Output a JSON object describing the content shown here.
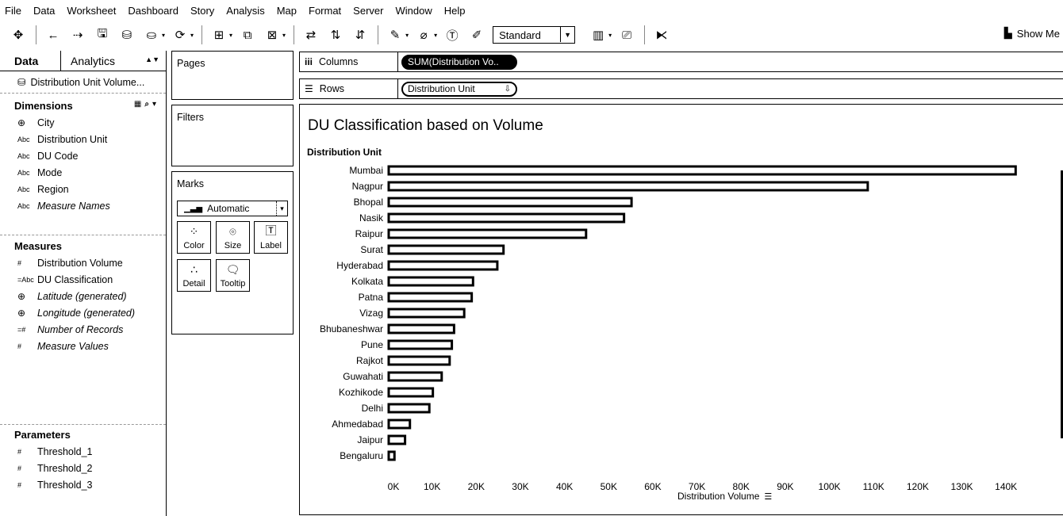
{
  "menu": [
    "File",
    "Data",
    "Worksheet",
    "Dashboard",
    "Story",
    "Analysis",
    "Map",
    "Format",
    "Server",
    "Window",
    "Help"
  ],
  "toolbar": {
    "fit_select": "Standard",
    "show_me": "Show Me"
  },
  "data_pane": {
    "tabs": {
      "data": "Data",
      "analytics": "Analytics"
    },
    "datasource": "Distribution Unit Volume...",
    "dimensions_title": "Dimensions",
    "dimensions": [
      {
        "type": "geo",
        "name": "City",
        "italic": false
      },
      {
        "type": "Abc",
        "name": "Distribution Unit",
        "italic": false
      },
      {
        "type": "Abc",
        "name": "DU Code",
        "italic": false
      },
      {
        "type": "Abc",
        "name": "Mode",
        "italic": false
      },
      {
        "type": "Abc",
        "name": "Region",
        "italic": false
      },
      {
        "type": "Abc",
        "name": "Measure Names",
        "italic": true
      }
    ],
    "measures_title": "Measures",
    "measures": [
      {
        "type": "#",
        "name": "Distribution Volume",
        "italic": false
      },
      {
        "type": "=Abc",
        "name": "DU Classification",
        "italic": false
      },
      {
        "type": "geo",
        "name": "Latitude (generated)",
        "italic": true
      },
      {
        "type": "geo",
        "name": "Longitude (generated)",
        "italic": true
      },
      {
        "type": "=#",
        "name": "Number of Records",
        "italic": true
      },
      {
        "type": "#",
        "name": "Measure Values",
        "italic": true
      }
    ],
    "parameters_title": "Parameters",
    "parameters": [
      {
        "type": "#",
        "name": "Threshold_1"
      },
      {
        "type": "#",
        "name": "Threshold_2"
      },
      {
        "type": "#",
        "name": "Threshold_3"
      }
    ]
  },
  "cards": {
    "pages": "Pages",
    "filters": "Filters",
    "marks": "Marks",
    "marks_type": "Automatic",
    "mark_buttons": [
      "Color",
      "Size",
      "Label",
      "Detail",
      "Tooltip"
    ]
  },
  "shelves": {
    "columns_label": "Columns",
    "columns_pill": "SUM(Distribution Vo..",
    "rows_label": "Rows",
    "rows_pill": "Distribution Unit"
  },
  "viz": {
    "title": "DU Classification based on Volume",
    "row_header": "Distribution Unit",
    "x_title": "Distribution Volume"
  },
  "chart_data": {
    "type": "bar",
    "orientation": "horizontal",
    "title": "DU Classification based on Volume",
    "xlabel": "Distribution Volume",
    "ylabel": "Distribution Unit",
    "categories": [
      "Mumbai",
      "Nagpur",
      "Bhopal",
      "Nasik",
      "Raipur",
      "Surat",
      "Hyderabad",
      "Kolkata",
      "Patna",
      "Vizag",
      "Bhubaneshwar",
      "Pune",
      "Rajkot",
      "Guwahati",
      "Kozhikode",
      "Delhi",
      "Ahmedabad",
      "Jaipur",
      "Bengaluru"
    ],
    "values": [
      142000,
      108500,
      55000,
      53300,
      44700,
      26000,
      24600,
      19100,
      18800,
      17100,
      14800,
      14300,
      13800,
      12000,
      10000,
      9200,
      4800,
      3700,
      1300
    ],
    "xlim": [
      0,
      145000
    ],
    "ticks": [
      0,
      10000,
      20000,
      30000,
      40000,
      50000,
      60000,
      70000,
      80000,
      90000,
      100000,
      110000,
      120000,
      130000,
      140000
    ],
    "tick_labels": [
      "0K",
      "10K",
      "20K",
      "30K",
      "40K",
      "50K",
      "60K",
      "70K",
      "80K",
      "90K",
      "100K",
      "110K",
      "120K",
      "130K",
      "140K"
    ],
    "grid": false,
    "legend": "none"
  }
}
